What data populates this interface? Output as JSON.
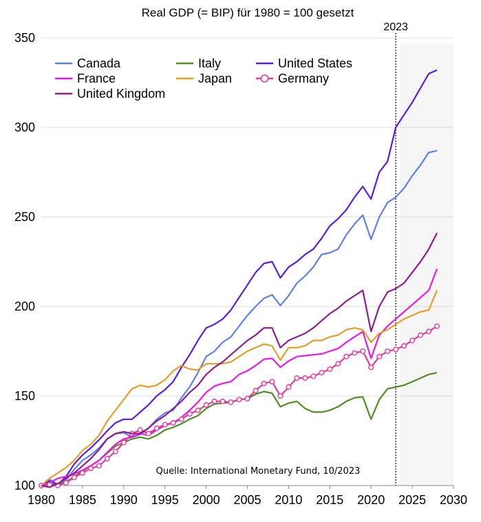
{
  "chart_data": {
    "type": "line",
    "title": "Real GDP (= BIP) für 1980 = 100 gesetzt",
    "source": "Quelle: International Monetary Fund, 10/2023",
    "xlabel": "",
    "ylabel": "",
    "xlim": [
      1980,
      2030
    ],
    "ylim": [
      100,
      350
    ],
    "x_ticks": [
      "1980",
      "1985",
      "1990",
      "1995",
      "2000",
      "2005",
      "2010",
      "2015",
      "2020",
      "2025",
      "2030"
    ],
    "y_ticks": [
      "100",
      "150",
      "200",
      "250",
      "300",
      "350"
    ],
    "grid": "horizontal",
    "legend_position": "top-left",
    "forecast_marker": {
      "year": 2023,
      "label": "2023"
    },
    "x": [
      1980,
      1981,
      1982,
      1983,
      1984,
      1985,
      1986,
      1987,
      1988,
      1989,
      1990,
      1991,
      1992,
      1993,
      1994,
      1995,
      1996,
      1997,
      1998,
      1999,
      2000,
      2001,
      2002,
      2003,
      2004,
      2005,
      2006,
      2007,
      2008,
      2009,
      2010,
      2011,
      2012,
      2013,
      2014,
      2015,
      2016,
      2017,
      2018,
      2019,
      2020,
      2021,
      2022,
      2023,
      2024,
      2025,
      2026,
      2027,
      2028
    ],
    "series": [
      {
        "name": "Canada",
        "color": "#5b7ff0",
        "marker": false,
        "values": [
          100,
          103.5,
          100.5,
          103,
          109,
          114,
          117,
          121,
          126,
          129,
          129.5,
          127,
          128.5,
          132,
          137,
          140.5,
          142,
          149,
          155,
          163,
          172,
          175,
          180,
          183,
          189,
          195,
          200,
          204.5,
          206.5,
          200.5,
          206,
          213,
          217,
          222,
          229,
          230,
          232,
          240,
          246,
          251,
          237.5,
          250,
          258,
          261,
          266,
          273,
          279,
          286,
          287
        ]
      },
      {
        "name": "Italy",
        "color": "#4a8f1f",
        "marker": false,
        "values": [
          100,
          100.5,
          101,
          102,
          105,
          108,
          111,
          114,
          118,
          122,
          124,
          126,
          127,
          126,
          128,
          131,
          132.5,
          134.5,
          137,
          139,
          143,
          145.5,
          146,
          146.5,
          148,
          148.5,
          151,
          152.5,
          151.5,
          144,
          146,
          147,
          143,
          141,
          141,
          142,
          144,
          147,
          149,
          149.5,
          137,
          148,
          154,
          155,
          156,
          158,
          160,
          162,
          163
        ]
      },
      {
        "name": "United States",
        "color": "#5a1bde",
        "marker": false,
        "values": [
          100,
          102.5,
          100.5,
          105,
          112,
          117,
          121,
          125.5,
          130.5,
          135,
          137,
          137,
          141,
          145,
          150,
          153.5,
          158,
          166,
          173,
          181,
          188,
          190,
          193,
          198,
          205,
          212,
          219,
          224,
          225,
          216,
          222,
          225,
          229,
          232,
          238,
          245,
          249,
          254,
          261,
          267,
          260,
          275,
          281,
          300,
          307,
          314,
          322,
          330,
          332
        ]
      },
      {
        "name": "France",
        "color": "#ea16ea",
        "marker": false,
        "values": [
          100,
          101.5,
          104,
          105,
          106.5,
          108.5,
          111,
          114,
          118.5,
          123,
          126,
          127,
          129,
          128,
          131,
          133.5,
          135,
          138,
          142,
          146.5,
          152,
          155.5,
          157,
          158,
          162,
          164,
          167,
          170.5,
          171,
          166,
          169.5,
          172,
          172.5,
          173,
          173.5,
          175,
          176.5,
          180,
          183,
          186,
          171,
          184,
          189,
          193,
          197,
          201,
          205,
          209,
          221
        ]
      },
      {
        "name": "Japan",
        "color": "#e89c26",
        "marker": false,
        "values": [
          100,
          104,
          107,
          110,
          114,
          119.5,
          123,
          128,
          136,
          142,
          148,
          154,
          156,
          155,
          156,
          159,
          164,
          167,
          165,
          164.5,
          168,
          168,
          168,
          169,
          172,
          175,
          177,
          179,
          178,
          170,
          177,
          177,
          178,
          181,
          181,
          183,
          184,
          187,
          188,
          187,
          180,
          185,
          187,
          190,
          193,
          195,
          197,
          198,
          209
        ]
      },
      {
        "name": "Germany",
        "color": "#e23a9a",
        "marker": true,
        "values": [
          100,
          100.5,
          100,
          101.5,
          104.5,
          107,
          109.5,
          111,
          115,
          119,
          124,
          129,
          131,
          129,
          132,
          134,
          135,
          137,
          140,
          142,
          145,
          147,
          147,
          146.5,
          148,
          148.5,
          153,
          157,
          158,
          150,
          155,
          160,
          160,
          161,
          163,
          165,
          168,
          172,
          174,
          175,
          166,
          172,
          175,
          176,
          178,
          181,
          184,
          186,
          189
        ]
      },
      {
        "name": "United Kingdom",
        "color": "#8e1c8f",
        "marker": false,
        "values": [
          100,
          99,
          101,
          104,
          107,
          111,
          115,
          120,
          126,
          129,
          130,
          129,
          129,
          132,
          136,
          139,
          143,
          147,
          152,
          156,
          162,
          166,
          169,
          173,
          177,
          181,
          184,
          188,
          188,
          177,
          181,
          183,
          185,
          188,
          192,
          196,
          199,
          203,
          206,
          209,
          186,
          200,
          208,
          210,
          213,
          219,
          225,
          232,
          241
        ]
      }
    ]
  }
}
